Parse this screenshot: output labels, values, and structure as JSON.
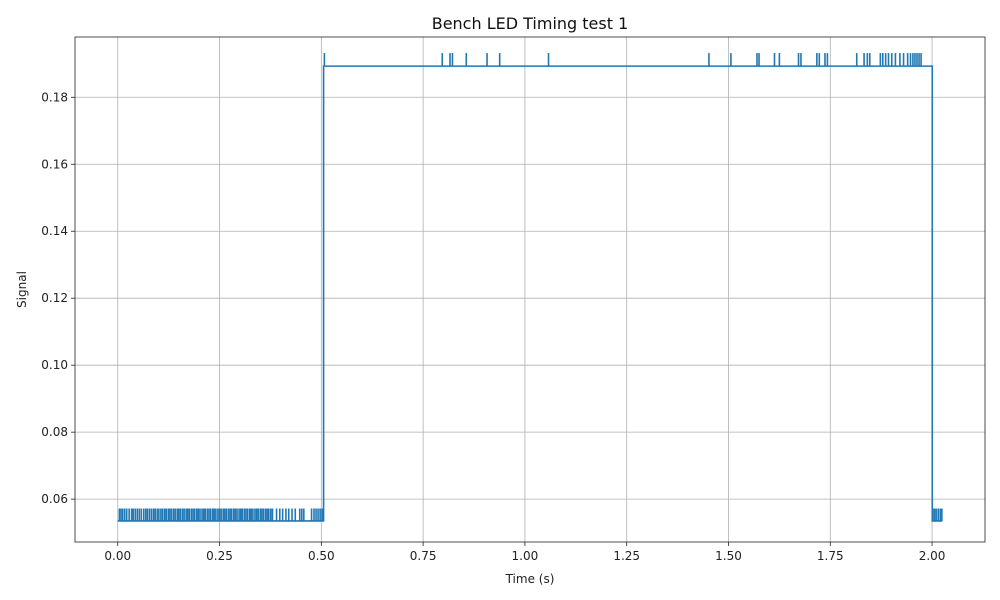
{
  "chart_data": {
    "type": "line",
    "title": "Bench LED Timing test 1",
    "xlabel": "Time (s)",
    "ylabel": "Signal",
    "xlim": [
      -0.105,
      2.13
    ],
    "ylim": [
      0.0472,
      0.198
    ],
    "xticks": [
      0.0,
      0.25,
      0.5,
      0.75,
      1.0,
      1.25,
      1.5,
      1.75,
      2.0
    ],
    "xtick_labels": [
      "0.00",
      "0.25",
      "0.50",
      "0.75",
      "1.00",
      "1.25",
      "1.50",
      "1.75",
      "2.00"
    ],
    "yticks": [
      0.06,
      0.08,
      0.1,
      0.12,
      0.14,
      0.16,
      0.18
    ],
    "ytick_labels": [
      "0.06",
      "0.08",
      "0.10",
      "0.12",
      "0.14",
      "0.16",
      "0.18"
    ],
    "grid": true,
    "series": [
      {
        "color": "#1f77b4",
        "x": [
          0.0,
          0.5055,
          0.5055,
          2.0005,
          2.0005,
          2.025
        ],
        "y": [
          0.0535,
          0.0535,
          0.1893,
          0.1893,
          0.0535,
          0.0535
        ],
        "low_spikes": {
          "base": 0.0535,
          "peak": 0.0572,
          "x": [
            0.004,
            0.008,
            0.012,
            0.017,
            0.022,
            0.028,
            0.034,
            0.038,
            0.043,
            0.048,
            0.053,
            0.058,
            0.064,
            0.069,
            0.073,
            0.078,
            0.083,
            0.088,
            0.092,
            0.097,
            0.101,
            0.106,
            0.11,
            0.115,
            0.119,
            0.124,
            0.128,
            0.132,
            0.137,
            0.141,
            0.146,
            0.15,
            0.154,
            0.159,
            0.163,
            0.168,
            0.172,
            0.176,
            0.181,
            0.185,
            0.189,
            0.194,
            0.198,
            0.202,
            0.207,
            0.211,
            0.215,
            0.22,
            0.224,
            0.228,
            0.233,
            0.237,
            0.241,
            0.246,
            0.25,
            0.254,
            0.259,
            0.263,
            0.267,
            0.272,
            0.276,
            0.28,
            0.285,
            0.289,
            0.293,
            0.298,
            0.302,
            0.306,
            0.311,
            0.315,
            0.319,
            0.324,
            0.328,
            0.332,
            0.337,
            0.341,
            0.345,
            0.35,
            0.354,
            0.358,
            0.363,
            0.367,
            0.371,
            0.376,
            0.38,
            0.39,
            0.398,
            0.405,
            0.413,
            0.42,
            0.428,
            0.436,
            0.447,
            0.452,
            0.457,
            0.476,
            0.482,
            0.487,
            0.492,
            0.497,
            0.502,
            2.002,
            2.006,
            2.01,
            2.015,
            2.02,
            2.024
          ]
        },
        "high_spikes": {
          "base": 0.1893,
          "peak": 0.1932,
          "x": [
            0.5075,
            0.797,
            0.816,
            0.822,
            0.856,
            0.907,
            0.938,
            1.058,
            1.452,
            1.506,
            1.57,
            1.575,
            1.613,
            1.625,
            1.672,
            1.678,
            1.717,
            1.723,
            1.737,
            1.743,
            1.815,
            1.833,
            1.841,
            1.847,
            1.873,
            1.879,
            1.886,
            1.893,
            1.901,
            1.91,
            1.921,
            1.93,
            1.94,
            1.947,
            1.953,
            1.958,
            1.963,
            1.968,
            1.973
          ]
        }
      }
    ]
  }
}
